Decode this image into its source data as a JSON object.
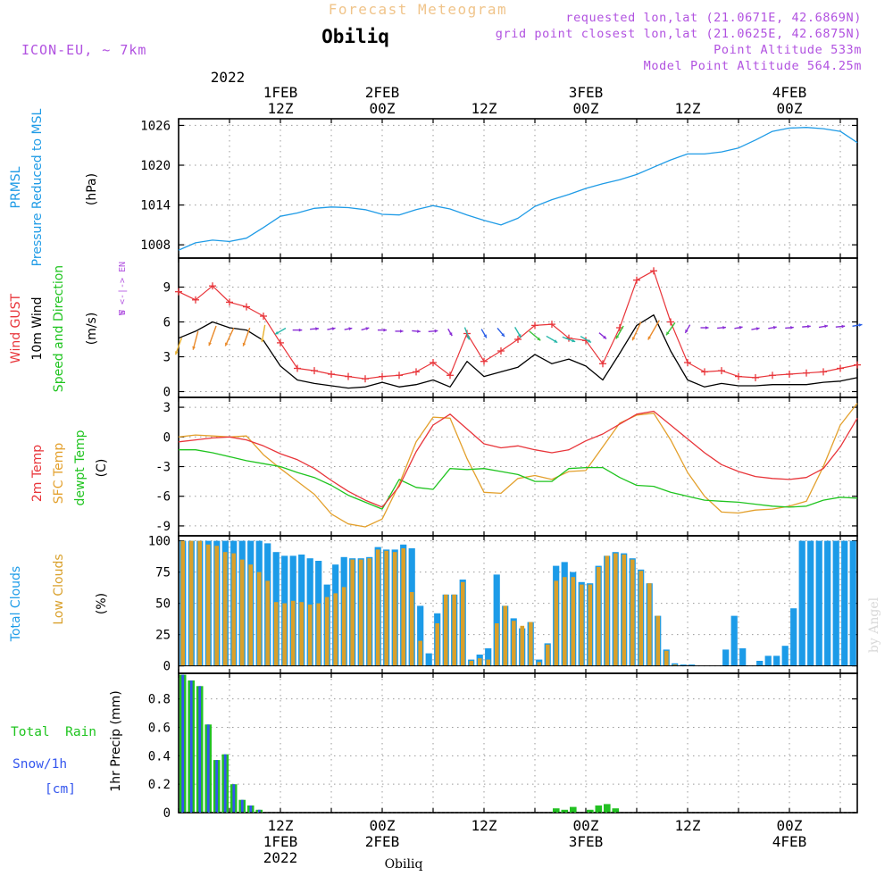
{
  "header": {
    "product_title": "Forecast Meteogram",
    "station": "Obiliq",
    "model": "ICON-EU, ~ 7km",
    "requested": "requested lon,lat (21.0671E, 42.6869N)",
    "gridpoint": "grid point closest lon,lat (21.0625E, 42.6875N)",
    "point_alt": "Point Altitude 533m",
    "model_alt": "Model Point Altitude 564.25m"
  },
  "time_axis": {
    "top_year": "2022",
    "ticks": [
      {
        "h": 12,
        "top": [
          "1FEB",
          "12Z"
        ],
        "bottom": [
          "12Z",
          "1FEB",
          "2022"
        ]
      },
      {
        "h": 24,
        "top": [
          "2FEB",
          "00Z"
        ],
        "bottom": [
          "00Z",
          "2FEB"
        ]
      },
      {
        "h": 36,
        "top": [
          "12Z"
        ],
        "bottom": [
          "12Z"
        ]
      },
      {
        "h": 48,
        "top": [
          "3FEB",
          "00Z"
        ],
        "bottom": [
          "00Z",
          "3FEB"
        ]
      },
      {
        "h": 60,
        "top": [
          "12Z"
        ],
        "bottom": [
          "12Z"
        ]
      },
      {
        "h": 72,
        "top": [
          "4FEB",
          "00Z"
        ],
        "bottom": [
          "00Z",
          "4FEB"
        ]
      }
    ],
    "xlabel": "Obiliq",
    "watermark": "by Angel"
  },
  "panel_labels": {
    "pressure": [
      "PRMSL",
      "Pressure Reduced to MSL"
    ],
    "pressure_unit": "(hPa)",
    "wind": [
      "Wind GUST",
      "10m Wind",
      "Speed and Direction"
    ],
    "wind_unit": "(m/s)",
    "compass": [
      "N",
      "W <-|-> E",
      "S"
    ],
    "temp": [
      "2m Temp",
      "SFC Temp",
      "dewpt Temp"
    ],
    "temp_unit": "(C)",
    "clouds": [
      "Total Clouds",
      "Low Clouds"
    ],
    "clouds_unit": "(%)",
    "precip_legend": [
      "Total  Rain",
      "Snow/1h",
      "[cm]"
    ],
    "precip_unit": "1hr Precip (mm)"
  },
  "colors": {
    "pressure": "#1f9be6",
    "gust": "#e8353a",
    "wind": "#000000",
    "temp2m": "#e8353a",
    "sfc": "#e3a02c",
    "dewpt": "#1fc41f",
    "total_clouds": "#1c9be8",
    "low_clouds": "#d9a02b",
    "rain": "#22c122",
    "snow": "#3355ee",
    "header_orange": "#f0c48a",
    "header_purple": "#b152e0"
  },
  "chart_data": [
    {
      "type": "line",
      "panel": "pressure",
      "ylim": [
        1006,
        1027
      ],
      "yticks": [
        1008,
        1014,
        1020,
        1026
      ],
      "x_hours": [
        0,
        2,
        4,
        6,
        8,
        10,
        12,
        14,
        16,
        18,
        20,
        22,
        24,
        26,
        28,
        30,
        32,
        34,
        36,
        38,
        40,
        42,
        44,
        46,
        48,
        50,
        52,
        54,
        56,
        58,
        60,
        62,
        64,
        66,
        68,
        70,
        72,
        74,
        76,
        78,
        80
      ],
      "series": [
        {
          "values": [
            1007.2,
            1008.3,
            1008.7,
            1008.5,
            1009.0,
            1010.6,
            1012.3,
            1012.8,
            1013.5,
            1013.7,
            1013.6,
            1013.3,
            1012.6,
            1012.5,
            1013.3,
            1013.9,
            1013.4,
            1012.5,
            1011.7,
            1011.0,
            1012.0,
            1013.8,
            1014.8,
            1015.6,
            1016.5,
            1017.2,
            1017.8,
            1018.6,
            1019.7,
            1020.8,
            1021.7,
            1021.7,
            1022.0,
            1022.6,
            1023.8,
            1025.1,
            1025.6,
            1025.7,
            1025.5,
            1025.1,
            1023.4
          ]
        }
      ]
    },
    {
      "type": "line",
      "panel": "wind",
      "ylim": [
        -0.5,
        11.5
      ],
      "yticks": [
        0,
        3,
        6,
        9
      ],
      "x_hours": [
        0,
        2,
        4,
        6,
        8,
        10,
        12,
        14,
        16,
        18,
        20,
        22,
        24,
        26,
        28,
        30,
        32,
        34,
        36,
        38,
        40,
        42,
        44,
        46,
        48,
        50,
        52,
        54,
        56,
        58,
        60,
        62,
        64,
        66,
        68,
        70,
        72,
        74,
        76,
        78,
        80
      ],
      "series": [
        {
          "name": "Wind GUST",
          "values": [
            8.6,
            7.9,
            9.1,
            7.7,
            7.3,
            6.5,
            4.2,
            2.0,
            1.8,
            1.5,
            1.3,
            1.1,
            1.3,
            1.4,
            1.7,
            2.5,
            1.4,
            5.0,
            2.6,
            3.5,
            4.5,
            5.7,
            5.8,
            4.6,
            4.4,
            2.4,
            5.5,
            9.6,
            10.4,
            6.0,
            2.5,
            1.7,
            1.8,
            1.3,
            1.2,
            1.4,
            1.5,
            1.6,
            1.7,
            2.0,
            2.3
          ]
        },
        {
          "name": "10m Wind",
          "values": [
            4.6,
            5.2,
            6.0,
            5.5,
            5.3,
            4.4,
            2.2,
            1.0,
            0.7,
            0.5,
            0.3,
            0.4,
            0.8,
            0.4,
            0.6,
            1.0,
            0.4,
            2.6,
            1.3,
            1.7,
            2.1,
            3.2,
            2.4,
            2.8,
            2.2,
            1.0,
            3.3,
            5.7,
            6.6,
            3.5,
            1.0,
            0.4,
            0.7,
            0.5,
            0.5,
            0.6,
            0.6,
            0.6,
            0.8,
            0.9,
            1.2
          ]
        }
      ],
      "arrows_y": [
        3.9,
        4.4,
        4.8,
        4.7,
        4.7,
        5.0,
        5.2,
        5.3,
        5.4,
        5.4,
        5.4,
        5.4,
        5.3,
        5.2,
        5.2,
        5.2,
        5.1,
        5.0,
        5.0,
        5.1,
        5.1,
        4.8,
        4.5,
        4.5,
        4.5,
        4.8,
        5.1,
        5.2,
        5.3,
        5.4,
        5.4,
        5.5,
        5.5,
        5.5,
        5.4,
        5.5,
        5.5,
        5.6,
        5.6,
        5.6,
        5.7
      ],
      "arrows_speed": [
        4.6,
        5.2,
        6.0,
        5.5,
        5.3,
        4.4,
        2.2,
        1.0,
        0.7,
        0.5,
        0.3,
        0.4,
        0.8,
        0.4,
        0.6,
        1.0,
        0.4,
        2.6,
        1.3,
        1.7,
        2.1,
        3.2,
        2.4,
        2.8,
        2.2,
        1.0,
        3.3,
        5.7,
        6.6,
        3.5,
        1.0,
        0.4,
        0.7,
        0.5,
        0.5,
        0.6,
        0.6,
        0.6,
        0.8,
        0.9,
        1.2
      ],
      "arrows_dir_deg": [
        20,
        15,
        20,
        25,
        20,
        10,
        60,
        270,
        265,
        260,
        260,
        255,
        270,
        270,
        275,
        265,
        330,
        340,
        330,
        320,
        330,
        310,
        300,
        290,
        300,
        310,
        30,
        25,
        30,
        35,
        30,
        270,
        265,
        260,
        260,
        260,
        265,
        265,
        260,
        265,
        260
      ]
    },
    {
      "type": "line",
      "panel": "temperature",
      "ylim": [
        -10,
        4
      ],
      "yticks": [
        -9,
        -6,
        -3,
        0,
        3
      ],
      "x_hours": [
        0,
        2,
        4,
        6,
        8,
        10,
        12,
        14,
        16,
        18,
        20,
        22,
        24,
        26,
        28,
        30,
        32,
        34,
        36,
        38,
        40,
        42,
        44,
        46,
        48,
        50,
        52,
        54,
        56,
        58,
        60,
        62,
        64,
        66,
        68,
        70,
        72,
        74,
        76,
        78,
        80
      ],
      "series": [
        {
          "name": "2m Temp",
          "values": [
            -0.5,
            -0.3,
            -0.1,
            0.0,
            -0.3,
            -0.9,
            -1.7,
            -2.3,
            -3.2,
            -4.4,
            -5.5,
            -6.4,
            -7.1,
            -5.0,
            -1.5,
            1.2,
            2.3,
            0.8,
            -0.7,
            -1.1,
            -0.9,
            -1.3,
            -1.6,
            -1.3,
            -0.4,
            0.3,
            1.3,
            2.3,
            2.6,
            1.2,
            -0.2,
            -1.6,
            -2.8,
            -3.5,
            -4.0,
            -4.2,
            -4.3,
            -4.1,
            -3.2,
            -1.0,
            1.9
          ]
        },
        {
          "name": "SFC Temp",
          "values": [
            0.0,
            0.2,
            0.1,
            0.0,
            0.1,
            -1.8,
            -3.2,
            -4.5,
            -5.8,
            -7.8,
            -8.8,
            -9.1,
            -8.3,
            -4.8,
            -0.5,
            2.0,
            1.9,
            -2.2,
            -5.6,
            -5.7,
            -4.2,
            -3.9,
            -4.3,
            -3.5,
            -3.4,
            -1.0,
            1.4,
            2.2,
            2.4,
            -0.3,
            -3.6,
            -6.0,
            -7.6,
            -7.7,
            -7.4,
            -7.3,
            -7.0,
            -6.5,
            -3.0,
            1.2,
            3.4
          ]
        },
        {
          "name": "dewpt Temp",
          "values": [
            -1.3,
            -1.3,
            -1.6,
            -2.0,
            -2.4,
            -2.7,
            -3.0,
            -3.6,
            -4.1,
            -4.9,
            -5.9,
            -6.6,
            -7.3,
            -4.3,
            -5.1,
            -5.3,
            -3.2,
            -3.3,
            -3.2,
            -3.5,
            -3.8,
            -4.5,
            -4.5,
            -3.2,
            -3.1,
            -3.1,
            -4.1,
            -4.9,
            -5.0,
            -5.6,
            -6.0,
            -6.4,
            -6.5,
            -6.6,
            -6.8,
            -7.0,
            -7.1,
            -7.0,
            -6.4,
            -6.1,
            -6.2
          ]
        }
      ]
    },
    {
      "type": "bar",
      "panel": "clouds",
      "ylim": [
        -6,
        104
      ],
      "yticks": [
        0,
        25,
        50,
        75,
        100
      ],
      "x_start_hour": 0,
      "x_step_hours": 1,
      "series": [
        {
          "name": "Total Clouds",
          "values": [
            100,
            100,
            100,
            100,
            100,
            100,
            100,
            100,
            100,
            100,
            98,
            91,
            88,
            88,
            89,
            86,
            84,
            65,
            81,
            87,
            86,
            86,
            87,
            95,
            93,
            93,
            97,
            94,
            48,
            10,
            42,
            57,
            57,
            69,
            5,
            9,
            14,
            73,
            48,
            38,
            30,
            35,
            5,
            18,
            80,
            83,
            75,
            67,
            66,
            80,
            88,
            91,
            90,
            86,
            77,
            66,
            40,
            13,
            2,
            1,
            1,
            0,
            0,
            0,
            13,
            40,
            14,
            0,
            4,
            8,
            8,
            16,
            46,
            100,
            100,
            100,
            100,
            100,
            100,
            100
          ]
        },
        {
          "name": "Low Clouds",
          "values": [
            100,
            100,
            100,
            97,
            96,
            91,
            90,
            85,
            81,
            75,
            68,
            51,
            50,
            52,
            51,
            49,
            50,
            55,
            58,
            63,
            85,
            85,
            86,
            93,
            92,
            91,
            94,
            59,
            20,
            0,
            34,
            57,
            57,
            67,
            4,
            6,
            5,
            34,
            48,
            36,
            32,
            35,
            3,
            17,
            68,
            71,
            71,
            65,
            65,
            79,
            88,
            90,
            89,
            85,
            76,
            66,
            40,
            12,
            1,
            0,
            0,
            0,
            0,
            0,
            0,
            0,
            0,
            0,
            0,
            0,
            0,
            0,
            0,
            0,
            0,
            0,
            0,
            0,
            0,
            0
          ]
        }
      ]
    },
    {
      "type": "bar",
      "panel": "precipitation",
      "ylim": [
        0,
        0.98
      ],
      "yticks": [
        0,
        0.2,
        0.4,
        0.6,
        0.8
      ],
      "x_start_hour": 0,
      "x_step_hours": 1,
      "series": [
        {
          "name": "Total Rain",
          "values": [
            0.97,
            0.93,
            0.89,
            0.62,
            0.37,
            0.41,
            0.2,
            0.09,
            0.05,
            0.02,
            0,
            0,
            0,
            0,
            0,
            0,
            0,
            0,
            0,
            0,
            0,
            0,
            0,
            0,
            0,
            0,
            0,
            0,
            0,
            0,
            0,
            0,
            0,
            0,
            0,
            0,
            0,
            0,
            0,
            0,
            0,
            0,
            0,
            0,
            0.03,
            0.02,
            0.04,
            0,
            0.02,
            0.05,
            0.06,
            0.03,
            0,
            0,
            0,
            0,
            0,
            0,
            0,
            0,
            0,
            0,
            0,
            0,
            0,
            0,
            0,
            0,
            0,
            0,
            0,
            0,
            0,
            0,
            0,
            0,
            0,
            0,
            0,
            0
          ]
        },
        {
          "name": "Snow/1h",
          "values": [
            0.97,
            0.93,
            0.89,
            0.62,
            0.37,
            0.41,
            0.2,
            0.09,
            0.05,
            0.02,
            0,
            0,
            0,
            0,
            0,
            0,
            0,
            0,
            0,
            0,
            0,
            0,
            0,
            0,
            0,
            0,
            0,
            0,
            0,
            0,
            0,
            0,
            0,
            0,
            0,
            0,
            0,
            0,
            0,
            0,
            0,
            0,
            0,
            0,
            0,
            0,
            0,
            0,
            0,
            0,
            0,
            0,
            0,
            0,
            0,
            0,
            0,
            0,
            0,
            0,
            0,
            0,
            0,
            0,
            0,
            0,
            0,
            0,
            0,
            0,
            0,
            0,
            0,
            0,
            0,
            0,
            0,
            0,
            0,
            0
          ]
        }
      ]
    }
  ]
}
